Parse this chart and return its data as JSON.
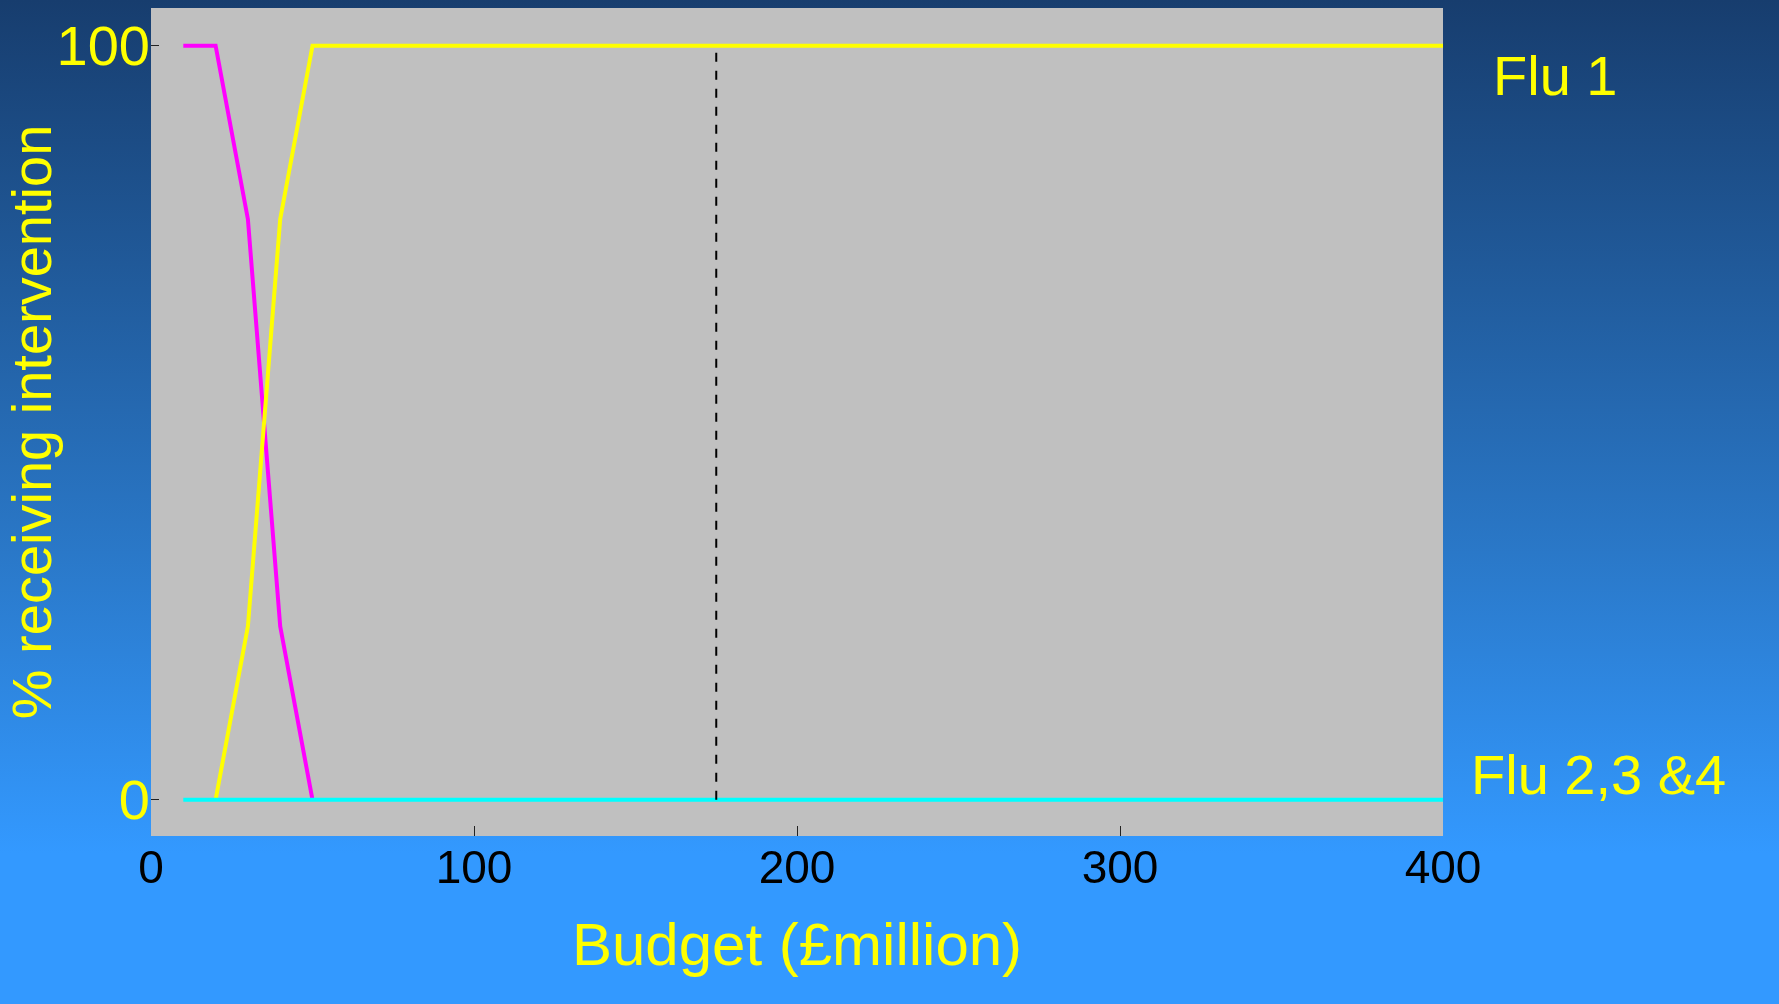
{
  "chart_data": {
    "type": "line",
    "xlabel": "Budget (£million)",
    "ylabel": "% receiving intervention",
    "xlim": [
      0,
      400
    ],
    "xticks": [
      0,
      100,
      200,
      300,
      400
    ],
    "ylim": [
      -4.8,
      105
    ],
    "yticks": [
      0,
      100
    ],
    "series": [
      {
        "color": "#ff00ff",
        "x": [
          10,
          20,
          30,
          40,
          50
        ],
        "values": [
          100,
          100,
          77,
          23,
          0
        ]
      },
      {
        "name": "Flu 1",
        "color": "#ffff00",
        "x": [
          20,
          30,
          40,
          50,
          400
        ],
        "values": [
          0,
          23,
          77,
          100,
          100
        ]
      },
      {
        "name": "Flu 2,3 &4",
        "color": "#00ffff",
        "x": [
          10,
          400
        ],
        "values": [
          0,
          0
        ]
      }
    ],
    "ref_lines": [
      {
        "axis": "x",
        "value": 175,
        "line_style": "dashed",
        "color": "#000000"
      }
    ],
    "grid": false,
    "legend": false,
    "marker": "none",
    "line_style": "solid"
  }
}
